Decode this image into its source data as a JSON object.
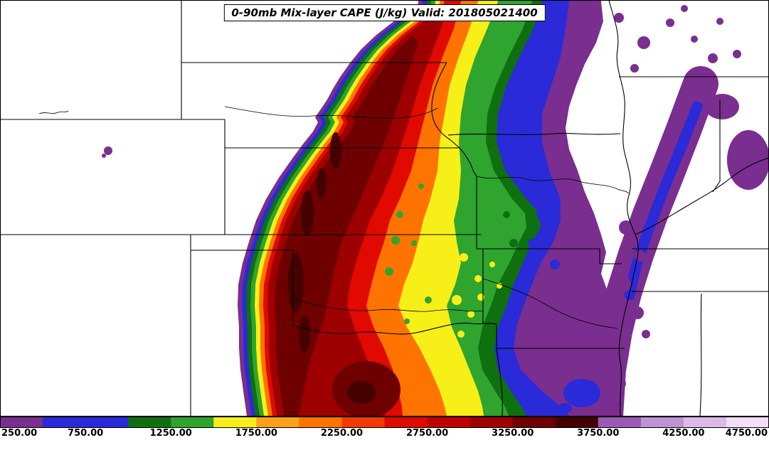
{
  "figure": {
    "title": "0-90mb Mix-layer CAPE (J/kg) Valid: 201805021400"
  },
  "chart_data": {
    "type": "heatmap",
    "subtype": "filled-contour-weather-map",
    "title": "0-90mb Mix-layer CAPE (J/kg) Valid: 201805021400",
    "field": "0-90mb Mix-layer CAPE",
    "units": "J/kg",
    "valid_label": "Valid: 201805021400",
    "valid_time": "201805021400",
    "map": {
      "overlay": "US state borders and rivers (central United States)",
      "background_color": "#FFFFFF",
      "border_color": "#000000"
    },
    "colorbar": {
      "orientation": "horizontal",
      "position": "bottom",
      "min": 250,
      "max": 4750,
      "interval": 250,
      "tick_values": [
        250,
        750,
        1250,
        1750,
        2250,
        2750,
        3250,
        3750,
        4250,
        4750
      ],
      "tick_labels": [
        "250.00",
        "750.00",
        "1250.00",
        "1750.00",
        "2250.00",
        "2750.00",
        "3250.00",
        "3750.00",
        "4250.00",
        "4750.00"
      ],
      "levels": [
        {
          "from": 250,
          "to": 500,
          "color": "#7A2E8F"
        },
        {
          "from": 500,
          "to": 750,
          "color": "#2A2AD8"
        },
        {
          "from": 750,
          "to": 1000,
          "color": "#2A2AD8"
        },
        {
          "from": 1000,
          "to": 1250,
          "color": "#0E700E"
        },
        {
          "from": 1250,
          "to": 1500,
          "color": "#2FA42F"
        },
        {
          "from": 1500,
          "to": 1750,
          "color": "#F7F018"
        },
        {
          "from": 1750,
          "to": 2000,
          "color": "#FFA01A"
        },
        {
          "from": 2000,
          "to": 2250,
          "color": "#FF7400"
        },
        {
          "from": 2250,
          "to": 2500,
          "color": "#F23B00"
        },
        {
          "from": 2500,
          "to": 2750,
          "color": "#E00A00"
        },
        {
          "from": 2750,
          "to": 3000,
          "color": "#C00000"
        },
        {
          "from": 3000,
          "to": 3250,
          "color": "#9E0000"
        },
        {
          "from": 3250,
          "to": 3500,
          "color": "#6E0000"
        },
        {
          "from": 3500,
          "to": 3750,
          "color": "#450000"
        },
        {
          "from": 3750,
          "to": 4000,
          "color": "#9C59B6"
        },
        {
          "from": 4000,
          "to": 4250,
          "color": "#BE93D4"
        },
        {
          "from": 4250,
          "to": 4500,
          "color": "#DCB9E8"
        },
        {
          "from": 4500,
          "to": 4750,
          "color": "#F3DEF5"
        }
      ]
    }
  }
}
